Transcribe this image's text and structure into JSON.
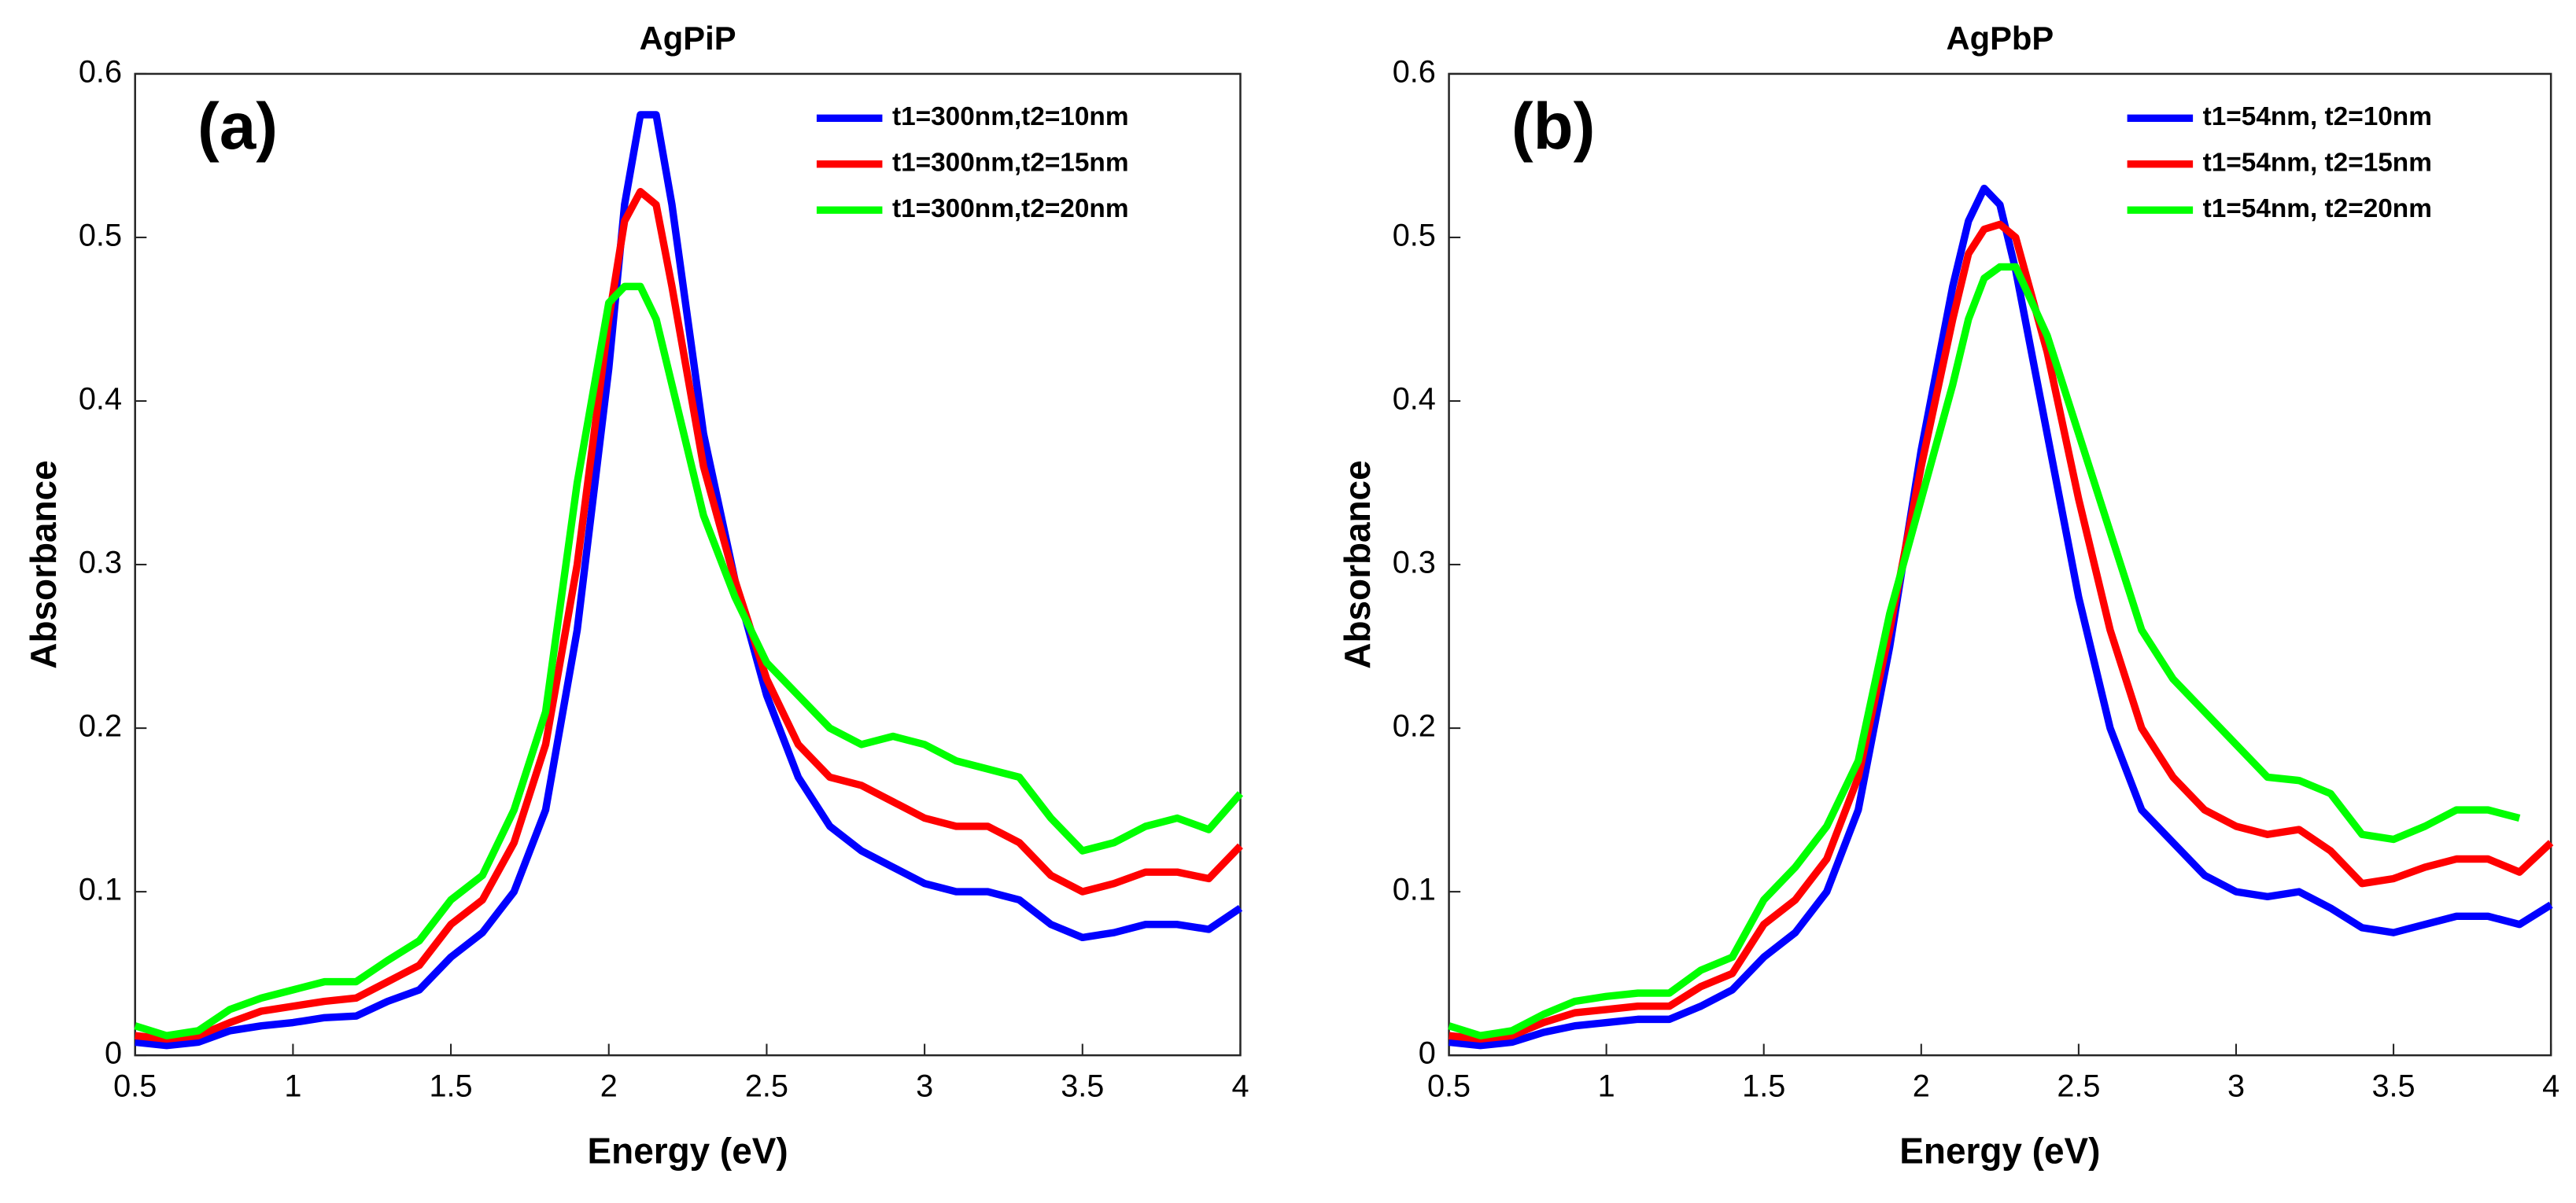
{
  "chart_data": [
    {
      "type": "line",
      "title": "AgPiP",
      "annotation": "(a)",
      "xlabel": "Energy (eV)",
      "ylabel": "Absorbance",
      "x": [
        0.5,
        0.6,
        0.7,
        0.8,
        0.9,
        1.0,
        1.1,
        1.2,
        1.3,
        1.4,
        1.5,
        1.6,
        1.7,
        1.8,
        1.9,
        2.0,
        2.05,
        2.1,
        2.15,
        2.2,
        2.3,
        2.4,
        2.5,
        2.6,
        2.7,
        2.8,
        2.9,
        3.0,
        3.1,
        3.2,
        3.3,
        3.4,
        3.5,
        3.6,
        3.7,
        3.8,
        3.9,
        4.0
      ],
      "series": [
        {
          "name": "t1=300nm,t2=10nm",
          "color": "#0000ff",
          "values": [
            0.008,
            0.006,
            0.008,
            0.015,
            0.018,
            0.02,
            0.023,
            0.024,
            0.033,
            0.04,
            0.06,
            0.075,
            0.1,
            0.15,
            0.26,
            0.42,
            0.52,
            0.575,
            0.575,
            0.52,
            0.38,
            0.29,
            0.22,
            0.17,
            0.14,
            0.125,
            0.115,
            0.105,
            0.1,
            0.1,
            0.095,
            0.08,
            0.072,
            0.075,
            0.08,
            0.08,
            0.077,
            0.09
          ]
        },
        {
          "name": "t1=300nm,t2=15nm",
          "color": "#ff0000",
          "values": [
            0.012,
            0.01,
            0.012,
            0.02,
            0.027,
            0.03,
            0.033,
            0.035,
            0.045,
            0.055,
            0.08,
            0.095,
            0.13,
            0.19,
            0.3,
            0.45,
            0.51,
            0.528,
            0.52,
            0.47,
            0.36,
            0.29,
            0.23,
            0.19,
            0.17,
            0.165,
            0.155,
            0.145,
            0.14,
            0.14,
            0.13,
            0.11,
            0.1,
            0.105,
            0.112,
            0.112,
            0.108,
            0.128
          ]
        },
        {
          "name": "t1=300nm,t2=20nm",
          "color": "#00ff00",
          "values": [
            0.018,
            0.012,
            0.015,
            0.028,
            0.035,
            0.04,
            0.045,
            0.045,
            0.058,
            0.07,
            0.095,
            0.11,
            0.15,
            0.21,
            0.35,
            0.46,
            0.47,
            0.47,
            0.45,
            0.41,
            0.33,
            0.28,
            0.24,
            0.22,
            0.2,
            0.19,
            0.195,
            0.19,
            0.18,
            0.175,
            0.17,
            0.145,
            0.125,
            0.13,
            0.14,
            0.145,
            0.138,
            0.16
          ]
        }
      ],
      "xlim": [
        0.5,
        4
      ],
      "xticks": [
        0.5,
        1,
        1.5,
        2,
        2.5,
        3,
        3.5,
        4
      ],
      "ylim": [
        0,
        0.6
      ],
      "yticks": [
        0,
        0.1,
        0.2,
        0.3,
        0.4,
        0.5,
        0.6
      ],
      "legend": "upper right"
    },
    {
      "type": "line",
      "title": "AgPbP",
      "annotation": "(b)",
      "xlabel": "Energy (eV)",
      "ylabel": "Absorbance",
      "x": [
        0.5,
        0.6,
        0.7,
        0.8,
        0.9,
        1.0,
        1.1,
        1.2,
        1.3,
        1.4,
        1.5,
        1.6,
        1.7,
        1.8,
        1.9,
        2.0,
        2.1,
        2.15,
        2.2,
        2.25,
        2.3,
        2.4,
        2.5,
        2.6,
        2.7,
        2.8,
        2.9,
        3.0,
        3.1,
        3.2,
        3.3,
        3.4,
        3.5,
        3.6,
        3.7,
        3.8,
        3.9,
        4.0
      ],
      "series": [
        {
          "name": "t1=54nm, t2=10nm",
          "color": "#0000ff",
          "values": [
            0.008,
            0.006,
            0.008,
            0.014,
            0.018,
            0.02,
            0.022,
            0.022,
            0.03,
            0.04,
            0.06,
            0.075,
            0.1,
            0.15,
            0.25,
            0.37,
            0.47,
            0.51,
            0.53,
            0.52,
            0.48,
            0.38,
            0.28,
            0.2,
            0.15,
            0.13,
            0.11,
            0.1,
            0.097,
            0.1,
            0.09,
            0.078,
            0.075,
            0.08,
            0.085,
            0.085,
            0.08,
            0.092
          ]
        },
        {
          "name": "t1=54nm, t2=15nm",
          "color": "#ff0000",
          "values": [
            0.012,
            0.01,
            0.012,
            0.02,
            0.026,
            0.028,
            0.03,
            0.03,
            0.042,
            0.05,
            0.08,
            0.095,
            0.12,
            0.17,
            0.26,
            0.36,
            0.45,
            0.49,
            0.505,
            0.508,
            0.5,
            0.43,
            0.34,
            0.26,
            0.2,
            0.17,
            0.15,
            0.14,
            0.135,
            0.138,
            0.125,
            0.105,
            0.108,
            0.115,
            0.12,
            0.12,
            0.112,
            0.13
          ]
        },
        {
          "name": "t1=54nm, t2=20nm",
          "color": "#00ff00",
          "values": [
            0.018,
            0.012,
            0.015,
            0.025,
            0.033,
            0.036,
            0.038,
            0.038,
            0.052,
            0.06,
            0.095,
            0.115,
            0.14,
            0.18,
            0.27,
            0.34,
            0.41,
            0.45,
            0.475,
            0.482,
            0.482,
            0.44,
            0.38,
            0.32,
            0.26,
            0.23,
            0.21,
            0.19,
            0.17,
            0.168,
            0.16,
            0.135,
            0.132,
            0.14,
            0.15,
            0.15,
            0.145,
            null
          ]
        }
      ],
      "xlim": [
        0.5,
        4
      ],
      "xticks": [
        0.5,
        1,
        1.5,
        2,
        2.5,
        3,
        3.5,
        4
      ],
      "ylim": [
        0,
        0.6
      ],
      "yticks": [
        0,
        0.1,
        0.2,
        0.3,
        0.4,
        0.5,
        0.6
      ],
      "legend": "upper right"
    }
  ]
}
